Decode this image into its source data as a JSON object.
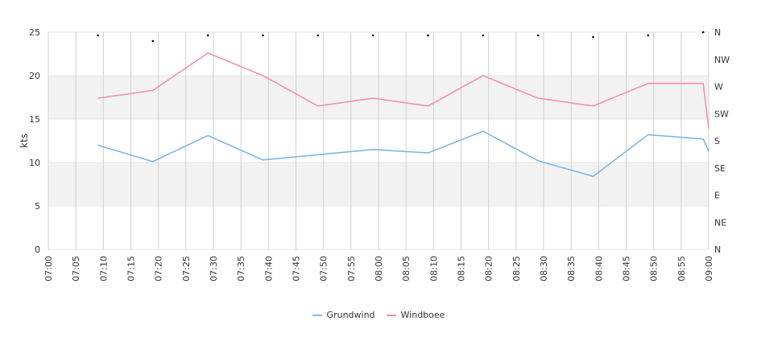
{
  "chart_data": {
    "type": "line",
    "ylabel": "kts",
    "ylim": [
      0,
      25
    ],
    "yticks": [
      "0",
      "5",
      "10",
      "15",
      "20",
      "25"
    ],
    "direction_ticks": [
      "N",
      "NE",
      "E",
      "SE",
      "S",
      "SW",
      "W",
      "NW",
      "N"
    ],
    "x_tick_labels": [
      "07:00",
      "07:05",
      "07:10",
      "07:15",
      "07:20",
      "07:25",
      "07:30",
      "07:35",
      "07:40",
      "07:45",
      "07:50",
      "07:55",
      "08:00",
      "08:05",
      "08:10",
      "08:15",
      "08:20",
      "08:25",
      "08:30",
      "08:35",
      "08:40",
      "08:45",
      "08:50",
      "08:55",
      "09:00"
    ],
    "x": [
      "07:09",
      "07:19",
      "07:29",
      "07:39",
      "07:49",
      "07:59",
      "08:09",
      "08:19",
      "08:29",
      "08:39",
      "08:49",
      "08:59",
      "09:00"
    ],
    "series": [
      {
        "name": "Grundwind",
        "color": "#7cb5ec",
        "values": [
          12.0,
          10.1,
          13.1,
          10.3,
          10.9,
          11.5,
          11.1,
          13.6,
          10.2,
          8.4,
          13.2,
          12.7,
          11.3
        ]
      },
      {
        "name": "Windboee",
        "color": "#f28fb7",
        "values": [
          17.4,
          18.3,
          22.6,
          20.0,
          16.5,
          17.4,
          16.5,
          20.0,
          17.4,
          16.5,
          19.1,
          19.1,
          13.9
        ]
      }
    ],
    "direction_markers": {
      "x": [
        "07:09",
        "07:19",
        "07:29",
        "07:39",
        "07:49",
        "07:59",
        "08:09",
        "08:19",
        "08:29",
        "08:39",
        "08:49",
        "08:59"
      ],
      "values": [
        "N",
        "N",
        "N",
        "N",
        "N",
        "N",
        "N",
        "N",
        "N",
        "N",
        "N",
        "N"
      ]
    },
    "bands": [
      [
        5,
        10
      ],
      [
        15,
        20
      ]
    ],
    "grid": true,
    "legend": "bottom-center"
  }
}
